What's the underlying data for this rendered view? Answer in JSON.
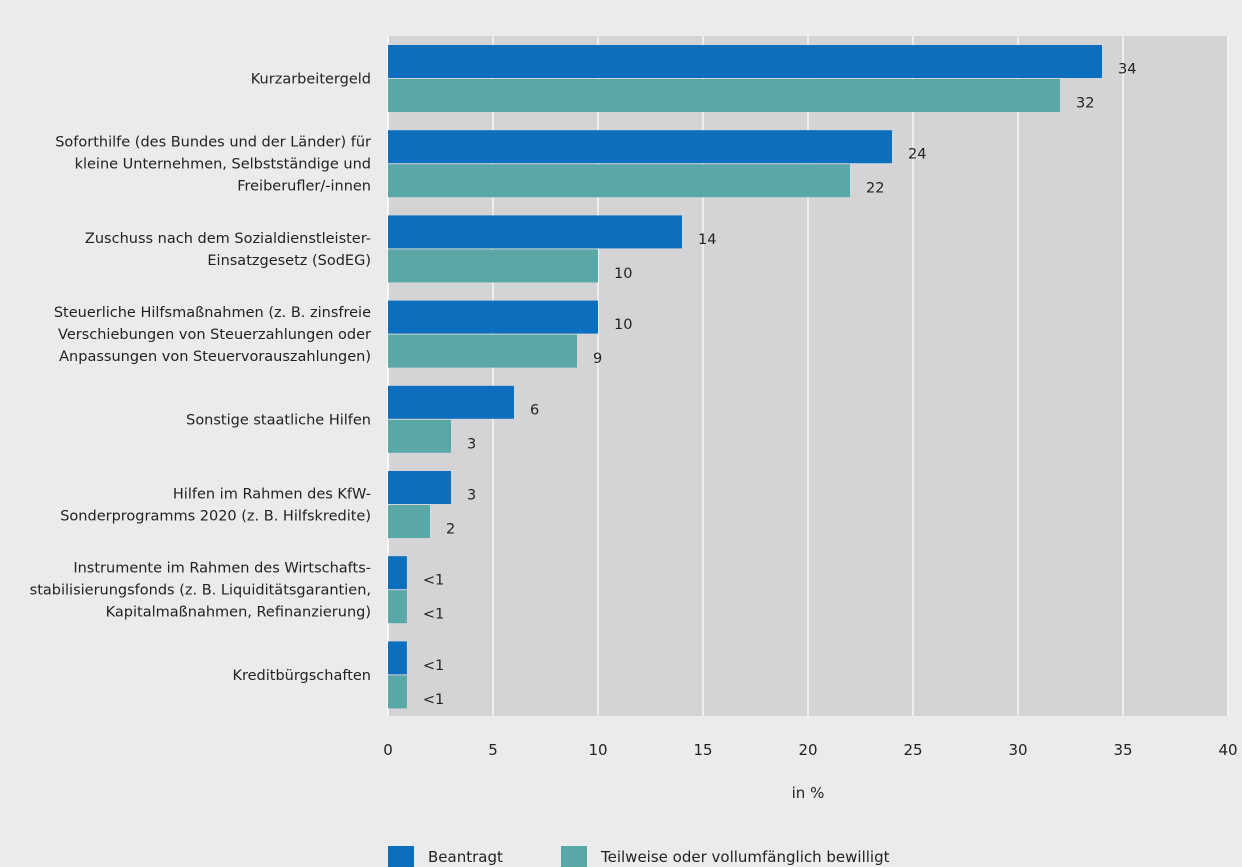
{
  "chart_data": {
    "type": "bar",
    "orientation": "horizontal",
    "categories": [
      [
        "Kurzarbeitergeld"
      ],
      [
        "Soforthilfe (des Bundes und der Länder) für",
        "kleine Unternehmen, Selbstständige und",
        "Freiberufler/-innen"
      ],
      [
        "Zuschuss nach dem Sozialdienstleister-",
        "Einsatzgesetz (SodEG)"
      ],
      [
        "Steuerliche Hilfsmaßnahmen (z. B. zinsfreie",
        "Verschiebungen von Steuerzahlungen oder",
        "Anpassungen von Steuervorauszahlungen)"
      ],
      [
        "Sonstige staatliche Hilfen"
      ],
      [
        "Hilfen im Rahmen des KfW-",
        "Sonderprogramms 2020 (z. B. Hilfskredite)"
      ],
      [
        "Instrumente im Rahmen des Wirtschafts-",
        "stabilisierungsfonds (z. B. Liquiditätsgarantien,",
        "Kapitalmaßnahmen, Refinanzierung)"
      ],
      [
        "Kreditbürgschaften"
      ]
    ],
    "series": [
      {
        "name": "Beantragt",
        "color": "#0c6fbd",
        "values": [
          34,
          24,
          14,
          10,
          6,
          3,
          0.9,
          0.9
        ],
        "labels": [
          "34",
          "24",
          "14",
          "10",
          "6",
          "3",
          "<1",
          "<1"
        ]
      },
      {
        "name": "Teilweise oder vollumfänglich bewilligt",
        "color": "#5aa7a8",
        "values": [
          32,
          22,
          10,
          9,
          3,
          2,
          0.9,
          0.9
        ],
        "labels": [
          "32",
          "22",
          "10",
          "9",
          "3",
          "2",
          "<1",
          "<1"
        ]
      }
    ],
    "xlabel": "in %",
    "xlim": [
      0,
      40
    ],
    "xticks": [
      0,
      5,
      10,
      15,
      20,
      25,
      30,
      35,
      40
    ],
    "grid": true,
    "legend": "bottom",
    "plot_background": "#d4d4d6",
    "page_background": "#ebebeb"
  }
}
